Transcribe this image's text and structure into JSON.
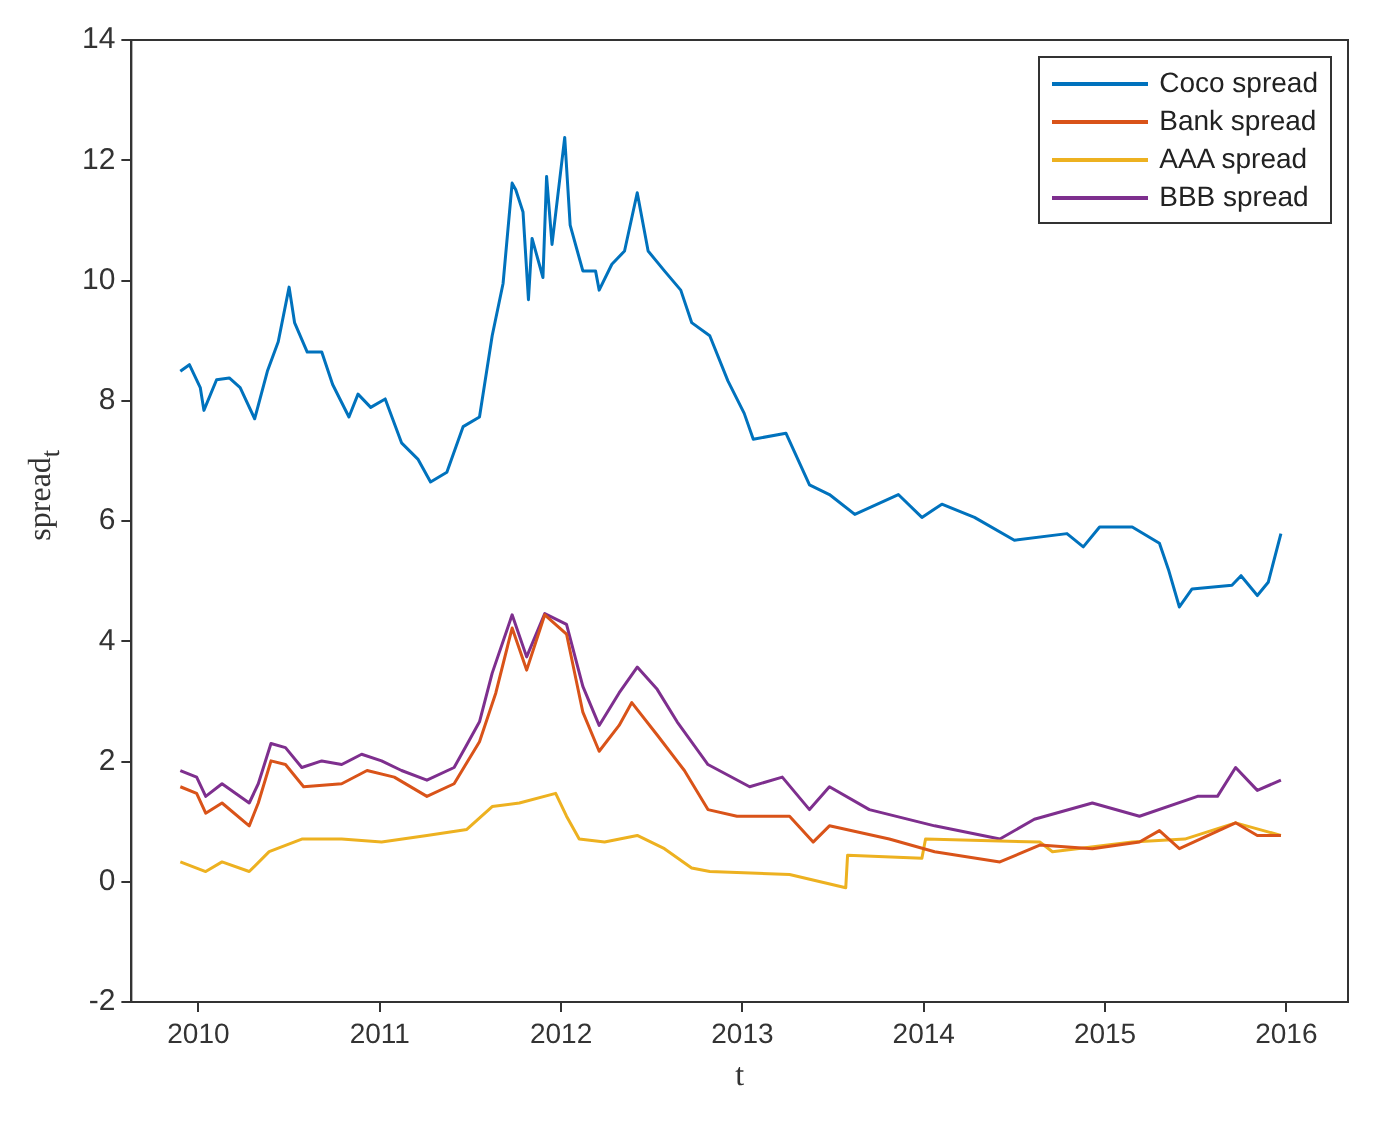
{
  "chart_data": {
    "type": "line",
    "xlabel": "t",
    "ylabel": "spread$_{t}$",
    "xlim": [
      2009.63,
      2016.34
    ],
    "xticks": [
      2010,
      2011,
      2012,
      2013,
      2014,
      2015,
      2016
    ],
    "ylim": [
      -2,
      14
    ],
    "yticks": [
      -2,
      0,
      2,
      4,
      6,
      8,
      10,
      12,
      14
    ],
    "legend": "top right",
    "series": [
      {
        "name": "Coco spread",
        "color": "#0072bd",
        "x": [
          2009.9,
          2009.95,
          2010.01,
          2010.03,
          2010.1,
          2010.17,
          2010.23,
          2010.31,
          2010.38,
          2010.44,
          2010.5,
          2010.53,
          2010.6,
          2010.68,
          2010.74,
          2010.83,
          2010.88,
          2010.95,
          2011.03,
          2011.12,
          2011.21,
          2011.28,
          2011.37,
          2011.46,
          2011.55,
          2011.62,
          2011.68,
          2011.73,
          2011.75,
          2011.79,
          2011.82,
          2011.84,
          2011.9,
          2011.92,
          2011.95,
          2012.02,
          2012.05,
          2012.12,
          2012.19,
          2012.21,
          2012.28,
          2012.35,
          2012.42,
          2012.48,
          2012.57,
          2012.66,
          2012.72,
          2012.82,
          2012.92,
          2013.01,
          2013.06,
          2013.24,
          2013.37,
          2013.48,
          2013.62,
          2013.86,
          2013.99,
          2014.1,
          2014.28,
          2014.5,
          2014.79,
          2014.88,
          2014.97,
          2015.15,
          2015.3,
          2015.35,
          2015.41,
          2015.48,
          2015.7,
          2015.75,
          2015.84,
          2015.9,
          2015.97
        ],
        "values": [
          8.49,
          8.6,
          8.22,
          7.84,
          8.35,
          8.38,
          8.22,
          7.7,
          8.49,
          8.98,
          9.89,
          9.3,
          8.81,
          8.81,
          8.27,
          7.73,
          8.11,
          7.89,
          8.03,
          7.3,
          7.03,
          6.65,
          6.81,
          7.57,
          7.73,
          9.08,
          9.95,
          11.62,
          11.51,
          11.14,
          9.68,
          10.7,
          10.05,
          11.73,
          10.6,
          12.38,
          10.92,
          10.16,
          10.16,
          9.84,
          10.27,
          10.49,
          11.46,
          10.49,
          10.16,
          9.84,
          9.3,
          9.08,
          8.33,
          7.79,
          7.36,
          7.46,
          6.6,
          6.44,
          6.11,
          6.44,
          6.06,
          6.28,
          6.06,
          5.68,
          5.79,
          5.57,
          5.9,
          5.9,
          5.63,
          5.19,
          4.57,
          4.87,
          4.93,
          5.09,
          4.76,
          4.98,
          5.79
        ]
      },
      {
        "name": "Bank spread",
        "color": "#d95319",
        "x": [
          2009.9,
          2009.99,
          2010.04,
          2010.13,
          2010.28,
          2010.33,
          2010.4,
          2010.48,
          2010.58,
          2010.79,
          2010.93,
          2011.08,
          2011.26,
          2011.41,
          2011.55,
          2011.64,
          2011.73,
          2011.81,
          2011.91,
          2012.03,
          2012.12,
          2012.21,
          2012.32,
          2012.39,
          2012.53,
          2012.68,
          2012.81,
          2012.97,
          2013.26,
          2013.39,
          2013.48,
          2013.81,
          2014.06,
          2014.42,
          2014.64,
          2014.93,
          2015.19,
          2015.3,
          2015.41,
          2015.72,
          2015.84,
          2015.97
        ],
        "values": [
          1.58,
          1.47,
          1.14,
          1.31,
          0.93,
          1.31,
          2.01,
          1.95,
          1.58,
          1.63,
          1.85,
          1.74,
          1.42,
          1.63,
          2.33,
          3.14,
          4.22,
          3.52,
          4.44,
          4.12,
          2.82,
          2.17,
          2.6,
          2.98,
          2.44,
          1.85,
          1.2,
          1.09,
          1.09,
          0.66,
          0.93,
          0.71,
          0.5,
          0.33,
          0.61,
          0.55,
          0.66,
          0.85,
          0.55,
          0.98,
          0.77,
          0.77
        ]
      },
      {
        "name": "AAA spread",
        "color": "#edb120",
        "x": [
          2009.9,
          2010.04,
          2010.13,
          2010.28,
          2010.39,
          2010.57,
          2010.79,
          2011.01,
          2011.26,
          2011.48,
          2011.62,
          2011.77,
          2011.97,
          2012.03,
          2012.1,
          2012.24,
          2012.42,
          2012.57,
          2012.72,
          2012.82,
          2013.26,
          2013.57,
          2013.58,
          2013.99,
          2014.01,
          2014.64,
          2014.71,
          2015.15,
          2015.44,
          2015.72,
          2015.97
        ],
        "values": [
          0.33,
          0.17,
          0.33,
          0.17,
          0.5,
          0.71,
          0.71,
          0.66,
          0.77,
          0.87,
          1.25,
          1.31,
          1.47,
          1.09,
          0.71,
          0.66,
          0.77,
          0.55,
          0.23,
          0.17,
          0.12,
          -0.1,
          0.44,
          0.39,
          0.71,
          0.66,
          0.5,
          0.66,
          0.71,
          0.98,
          0.77
        ]
      },
      {
        "name": "BBB spread",
        "color": "#7e2f8e",
        "x": [
          2009.9,
          2009.99,
          2010.04,
          2010.13,
          2010.28,
          2010.33,
          2010.4,
          2010.48,
          2010.57,
          2010.68,
          2010.79,
          2010.9,
          2011.01,
          2011.12,
          2011.26,
          2011.41,
          2011.48,
          2011.55,
          2011.62,
          2011.73,
          2011.81,
          2011.91,
          2012.03,
          2012.12,
          2012.21,
          2012.32,
          2012.42,
          2012.53,
          2012.64,
          2012.81,
          2013.04,
          2013.22,
          2013.37,
          2013.48,
          2013.7,
          2014.06,
          2014.42,
          2014.61,
          2014.93,
          2015.19,
          2015.51,
          2015.62,
          2015.72,
          2015.84,
          2015.97
        ],
        "values": [
          1.85,
          1.74,
          1.42,
          1.63,
          1.31,
          1.63,
          2.3,
          2.23,
          1.9,
          2.01,
          1.95,
          2.12,
          2.01,
          1.85,
          1.69,
          1.9,
          2.28,
          2.66,
          3.47,
          4.44,
          3.74,
          4.46,
          4.28,
          3.25,
          2.6,
          3.14,
          3.57,
          3.2,
          2.66,
          1.95,
          1.58,
          1.74,
          1.2,
          1.58,
          1.2,
          0.93,
          0.71,
          1.04,
          1.31,
          1.09,
          1.42,
          1.42,
          1.9,
          1.52,
          1.69
        ]
      }
    ]
  }
}
